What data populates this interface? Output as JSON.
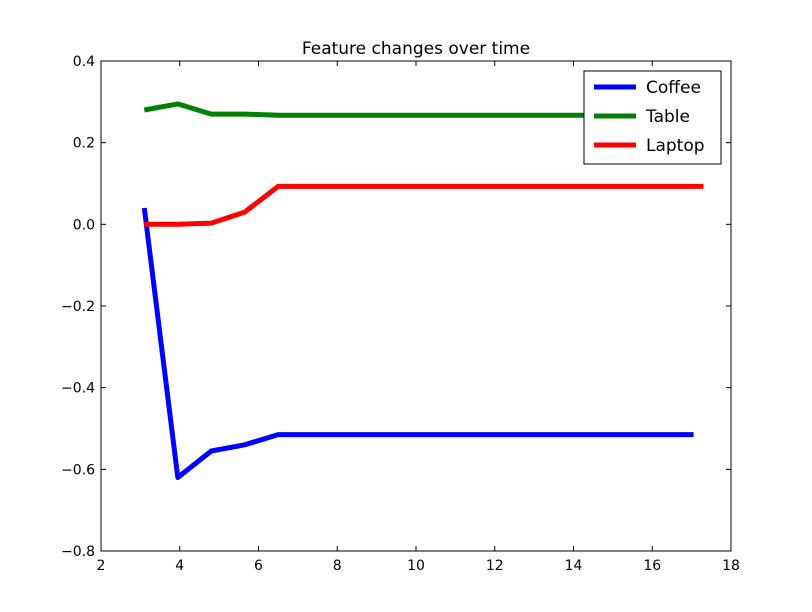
{
  "chart_data": {
    "type": "line",
    "title": "Feature changes over time",
    "xlabel": "",
    "ylabel": "",
    "xlim": [
      2,
      18
    ],
    "ylim": [
      -0.8,
      0.4
    ],
    "xticks": [
      "2",
      "4",
      "6",
      "8",
      "10",
      "12",
      "14",
      "16",
      "18"
    ],
    "yticks": [
      "−0.8",
      "−0.6",
      "−0.4",
      "−0.2",
      "0.0",
      "0.2",
      "0.4"
    ],
    "grid": false,
    "legend_position": "top-right",
    "series": [
      {
        "name": "Coffee",
        "color": "#0000ff",
        "x": [
          3.1,
          3.95,
          4.8,
          5.65,
          6.5,
          7,
          8,
          9,
          10,
          11,
          12,
          13,
          14,
          15,
          16,
          17.05
        ],
        "y": [
          0.04,
          -0.62,
          -0.555,
          -0.54,
          -0.515,
          -0.515,
          -0.515,
          -0.515,
          -0.515,
          -0.515,
          -0.515,
          -0.515,
          -0.515,
          -0.515,
          -0.515,
          -0.515
        ]
      },
      {
        "name": "Table",
        "color": "#008000",
        "x": [
          3.1,
          3.95,
          4.8,
          5.65,
          6.5,
          7,
          8,
          9,
          10,
          11,
          12,
          13,
          14,
          15,
          16,
          17.3
        ],
        "y": [
          0.28,
          0.295,
          0.27,
          0.27,
          0.267,
          0.267,
          0.267,
          0.267,
          0.267,
          0.267,
          0.267,
          0.267,
          0.267,
          0.267,
          0.267,
          0.267
        ]
      },
      {
        "name": "Laptop",
        "color": "#ff0000",
        "x": [
          3.1,
          3.95,
          4.8,
          5.65,
          6.5,
          7,
          8,
          9,
          10,
          11,
          12,
          13,
          14,
          15,
          16,
          17.3
        ],
        "y": [
          0.0,
          0.0,
          0.003,
          0.03,
          0.093,
          0.093,
          0.093,
          0.093,
          0.093,
          0.093,
          0.093,
          0.093,
          0.093,
          0.093,
          0.093,
          0.093
        ]
      }
    ]
  }
}
